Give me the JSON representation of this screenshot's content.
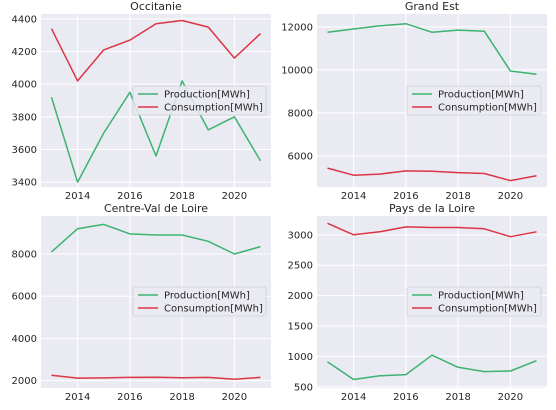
{
  "chart_data": [
    {
      "type": "line",
      "title": "Occitanie",
      "x": [
        2013,
        2014,
        2015,
        2016,
        2017,
        2018,
        2019,
        2020,
        2021
      ],
      "xticks": [
        2014,
        2016,
        2018,
        2020
      ],
      "yticks": [
        3400,
        3600,
        3800,
        4000,
        4200,
        4400
      ],
      "xlim": [
        2012.6,
        2021.4
      ],
      "ylim": [
        3370,
        4430
      ],
      "legend": "center-right",
      "grid": true,
      "series": [
        {
          "name": "Production[MWh]",
          "color": "#3cb371",
          "values": [
            3920,
            3400,
            3700,
            3950,
            3560,
            4020,
            3720,
            3800,
            3530
          ]
        },
        {
          "name": "Consumption[MWh]",
          "color": "#dc3545",
          "values": [
            4340,
            4020,
            4210,
            4270,
            4370,
            4390,
            4350,
            4160,
            4310
          ]
        }
      ]
    },
    {
      "type": "line",
      "title": "Grand Est",
      "x": [
        2013,
        2014,
        2015,
        2016,
        2017,
        2018,
        2019,
        2020,
        2021
      ],
      "xticks": [
        2014,
        2016,
        2018,
        2020
      ],
      "yticks": [
        6000,
        8000,
        10000,
        12000
      ],
      "xlim": [
        2012.6,
        2021.4
      ],
      "ylim": [
        4550,
        12600
      ],
      "legend": "center-right",
      "grid": true,
      "series": [
        {
          "name": "Production[MWh]",
          "color": "#3cb371",
          "values": [
            11750,
            11900,
            12050,
            12150,
            11750,
            11850,
            11800,
            9950,
            9800
          ]
        },
        {
          "name": "Consumption[MWh]",
          "color": "#dc3545",
          "values": [
            5430,
            5100,
            5150,
            5300,
            5280,
            5220,
            5180,
            4850,
            5070
          ]
        }
      ]
    },
    {
      "type": "line",
      "title": "Centre-Val de Loire",
      "x": [
        2013,
        2014,
        2015,
        2016,
        2017,
        2018,
        2019,
        2020,
        2021
      ],
      "xticks": [
        2014,
        2016,
        2018,
        2020
      ],
      "yticks": [
        2000,
        4000,
        6000,
        8000
      ],
      "xlim": [
        2012.6,
        2021.4
      ],
      "ylim": [
        1650,
        9800
      ],
      "legend": "center-right",
      "grid": true,
      "series": [
        {
          "name": "Production[MWh]",
          "color": "#3cb371",
          "values": [
            8100,
            9200,
            9400,
            8950,
            8900,
            8900,
            8600,
            8000,
            8350
          ]
        },
        {
          "name": "Consumption[MWh]",
          "color": "#dc3545",
          "values": [
            2250,
            2120,
            2130,
            2150,
            2160,
            2140,
            2150,
            2060,
            2150
          ]
        }
      ]
    },
    {
      "type": "line",
      "title": "Pays de la Loire",
      "x": [
        2013,
        2014,
        2015,
        2016,
        2017,
        2018,
        2019,
        2020,
        2021
      ],
      "xticks": [
        2014,
        2016,
        2018,
        2020
      ],
      "yticks": [
        500,
        1000,
        1500,
        2000,
        2500,
        3000
      ],
      "xlim": [
        2012.6,
        2021.4
      ],
      "ylim": [
        480,
        3310
      ],
      "legend": "center-right",
      "grid": true,
      "series": [
        {
          "name": "Production[MWh]",
          "color": "#3cb371",
          "values": [
            910,
            620,
            680,
            700,
            1020,
            820,
            750,
            760,
            930
          ]
        },
        {
          "name": "Consumption[MWh]",
          "color": "#dc3545",
          "values": [
            3190,
            3000,
            3050,
            3130,
            3120,
            3120,
            3100,
            2970,
            3050
          ]
        }
      ]
    }
  ]
}
